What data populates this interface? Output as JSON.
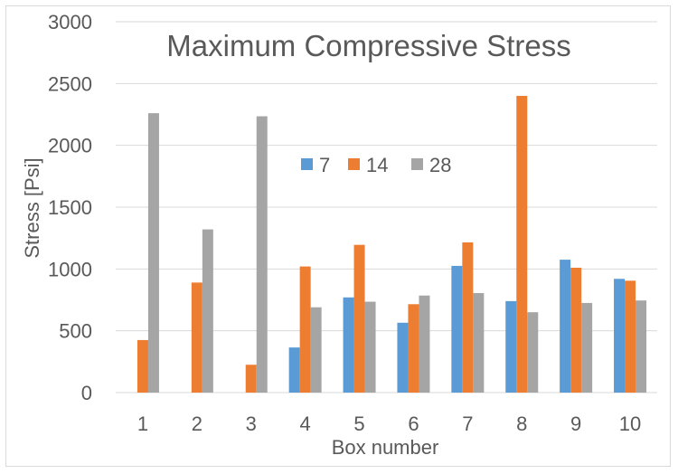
{
  "chart_data": {
    "type": "bar",
    "title": "Maximum Compressive Stress",
    "xlabel": "Box number",
    "ylabel": "Stress [Psi]",
    "ylim": [
      0,
      3000
    ],
    "yticks": [
      0,
      500,
      1000,
      1500,
      2000,
      2500,
      3000
    ],
    "grid": true,
    "legend_position": "center",
    "categories": [
      "1",
      "2",
      "3",
      "4",
      "5",
      "6",
      "7",
      "8",
      "9",
      "10"
    ],
    "series": [
      {
        "name": "7",
        "color": "#5b9bd5",
        "values": [
          0,
          0,
          0,
          365,
          770,
          565,
          1025,
          740,
          1075,
          920
        ]
      },
      {
        "name": "14",
        "color": "#ed7d31",
        "values": [
          425,
          890,
          225,
          1020,
          1195,
          715,
          1215,
          2400,
          1010,
          905
        ]
      },
      {
        "name": "28",
        "color": "#a5a5a5",
        "values": [
          2260,
          1320,
          2235,
          690,
          735,
          785,
          805,
          650,
          725,
          745
        ]
      }
    ]
  }
}
